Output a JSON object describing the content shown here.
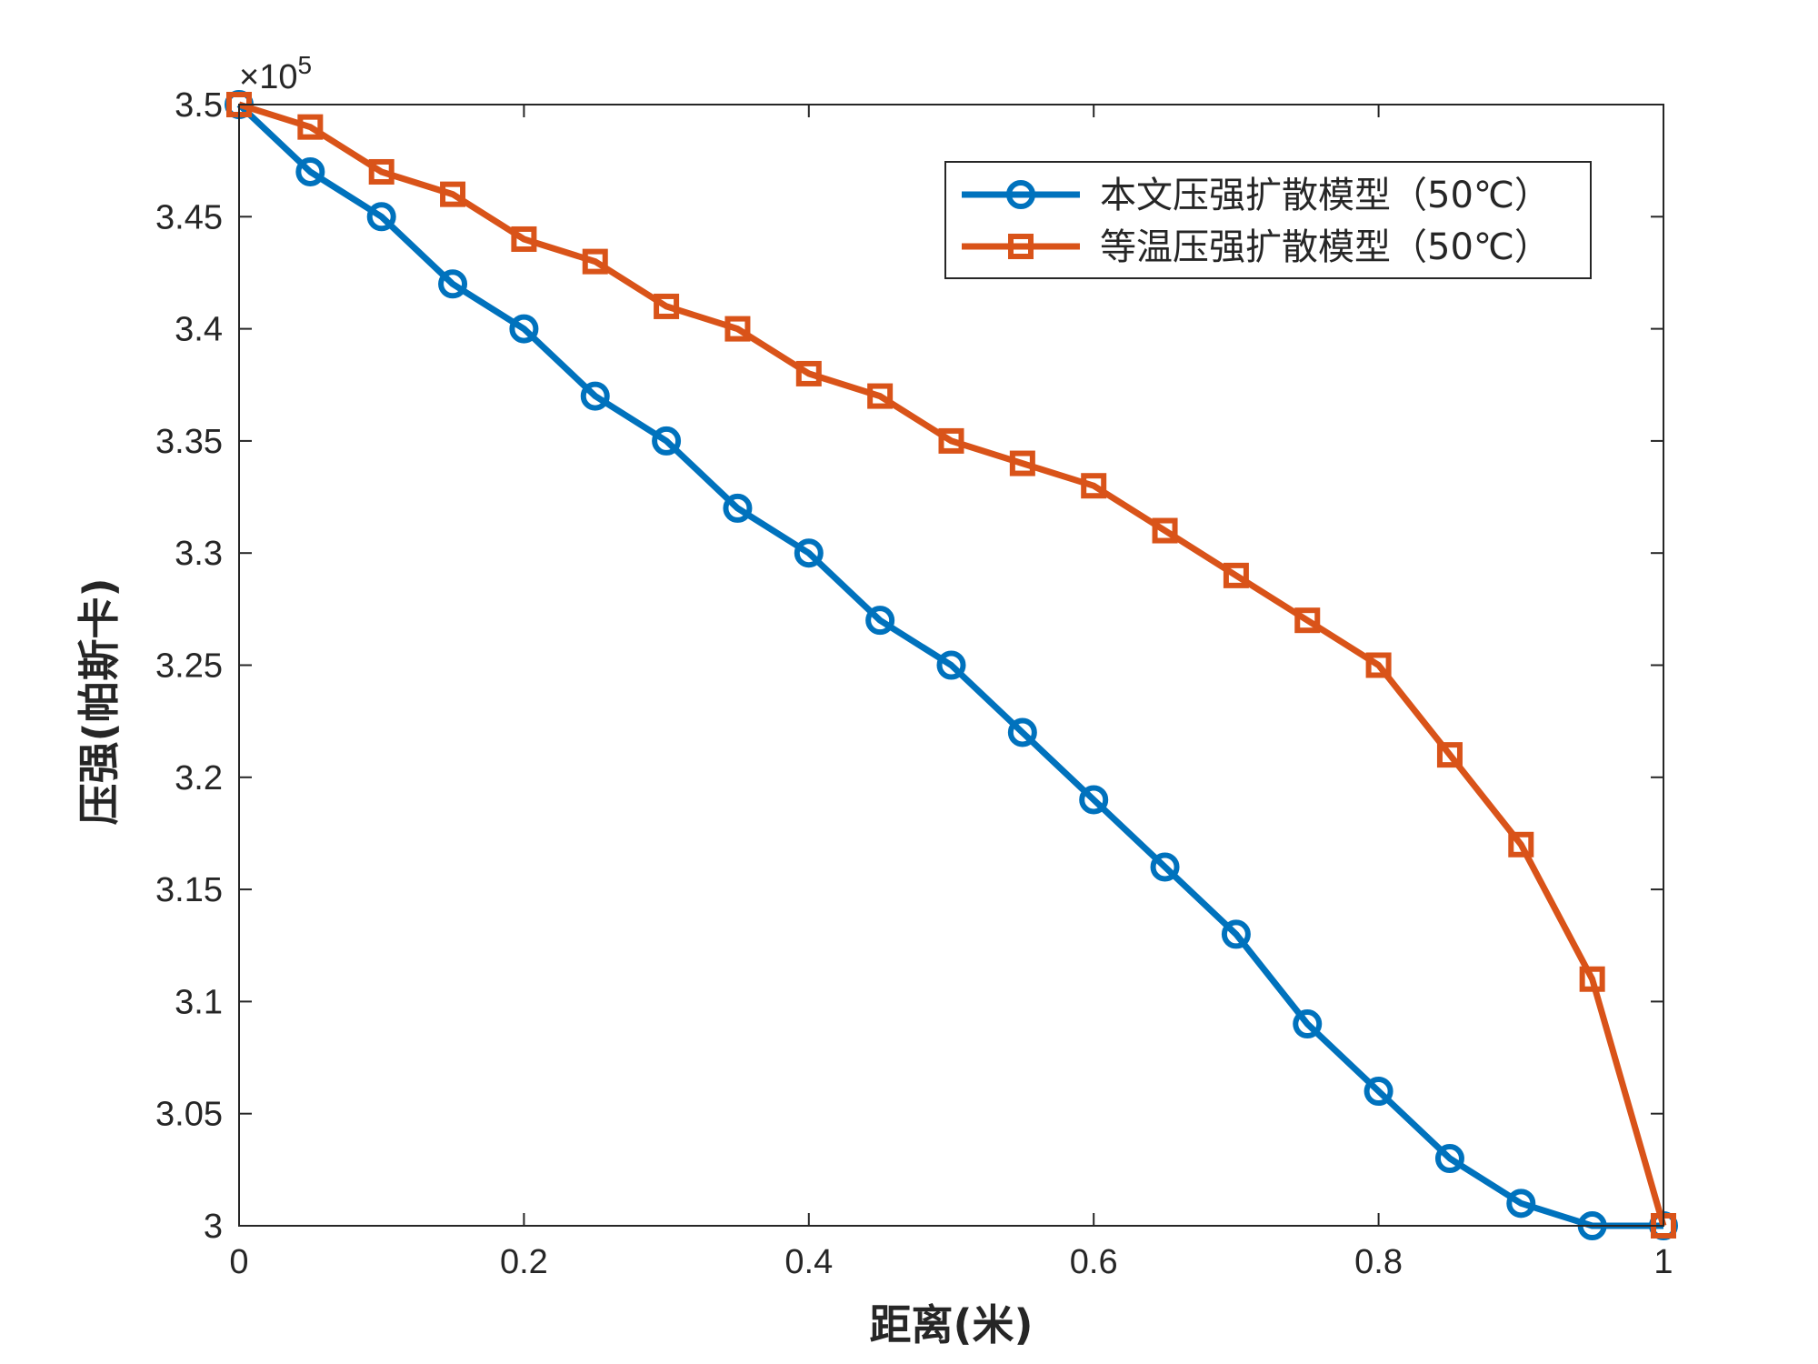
{
  "chart_data": {
    "type": "line",
    "title": "",
    "xlabel": "距离(米)",
    "ylabel": "压强(帕斯卡)",
    "y_multiplier": "×10",
    "y_multiplier_exponent": "5",
    "xlim": [
      0,
      1
    ],
    "ylim": [
      3.0,
      3.5
    ],
    "x_ticks": [
      0,
      0.2,
      0.4,
      0.6,
      0.8,
      1
    ],
    "x_tick_labels": [
      "0",
      "0.2",
      "0.4",
      "0.6",
      "0.8",
      "1"
    ],
    "y_ticks": [
      3.0,
      3.05,
      3.1,
      3.15,
      3.2,
      3.25,
      3.3,
      3.35,
      3.4,
      3.45,
      3.5
    ],
    "y_tick_labels": [
      "3",
      "3.05",
      "3.1",
      "3.15",
      "3.2",
      "3.25",
      "3.3",
      "3.35",
      "3.4",
      "3.45",
      "3.5"
    ],
    "grid": false,
    "legend_position": "top-right",
    "x": [
      0,
      0.05,
      0.1,
      0.15,
      0.2,
      0.25,
      0.3,
      0.35,
      0.4,
      0.45,
      0.5,
      0.55,
      0.6,
      0.65,
      0.7,
      0.75,
      0.8,
      0.85,
      0.9,
      0.95,
      1.0
    ],
    "series": [
      {
        "name": "本文压强扩散模型（50℃）",
        "color": "#0072BD",
        "marker": "circle",
        "values": [
          3.5,
          3.47,
          3.45,
          3.42,
          3.4,
          3.37,
          3.35,
          3.32,
          3.3,
          3.27,
          3.25,
          3.22,
          3.19,
          3.16,
          3.13,
          3.09,
          3.06,
          3.03,
          3.01,
          3.0,
          3.0
        ]
      },
      {
        "name": "等温压强扩散模型（50℃）",
        "color": "#D95319",
        "marker": "square",
        "values": [
          3.5,
          3.49,
          3.47,
          3.46,
          3.44,
          3.43,
          3.41,
          3.4,
          3.38,
          3.37,
          3.35,
          3.34,
          3.33,
          3.31,
          3.29,
          3.27,
          3.25,
          3.21,
          3.17,
          3.11,
          3.0
        ]
      }
    ]
  }
}
